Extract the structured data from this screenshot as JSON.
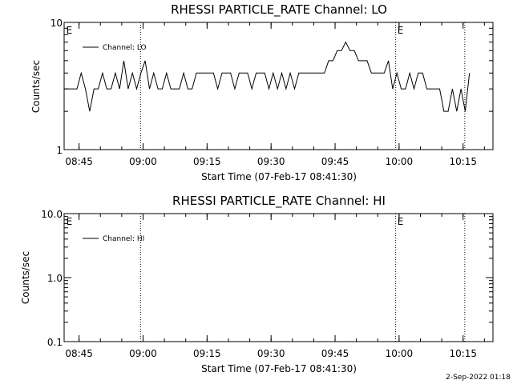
{
  "footer": {
    "date_label": "2-Sep-2022 01:18"
  },
  "chart_data": [
    {
      "type": "line",
      "title": "RHESSI PARTICLE_RATE Channel: LO",
      "xlabel": "Start Time (07-Feb-17 08:41:30)",
      "ylabel": "Counts/sec",
      "yscale": "log",
      "ylim": [
        1,
        10
      ],
      "ytick_labels": [
        "1",
        "10"
      ],
      "xlim": [
        "08:41:30",
        "10:22:00"
      ],
      "xtick_labels": [
        "08:45",
        "09:00",
        "09:15",
        "09:30",
        "09:45",
        "10:00",
        "10:15"
      ],
      "xtick_minutes": [
        3.5,
        18.5,
        33.5,
        48.5,
        63.5,
        78.5,
        93.5
      ],
      "vlines_minutes": [
        17.9,
        77.7,
        93.9
      ],
      "markers": [
        {
          "text": "E",
          "minutes": 0.3
        },
        {
          "text": "E",
          "minutes": 77.9
        }
      ],
      "legend": "top-left",
      "grid": false,
      "series": [
        {
          "name": "Channel: LO",
          "color": "#000000",
          "x": [
            0,
            1,
            2,
            3,
            4,
            5,
            6,
            7,
            8,
            9,
            10,
            11,
            12,
            13,
            14,
            15,
            16,
            17,
            18,
            19,
            20,
            21,
            22,
            23,
            24,
            25,
            26,
            27,
            28,
            29,
            30,
            31,
            32,
            33,
            34,
            35,
            36,
            37,
            38,
            39,
            40,
            41,
            42,
            43,
            44,
            45,
            46,
            47,
            48,
            49,
            50,
            51,
            52,
            53,
            54,
            55,
            56,
            57,
            58,
            59,
            60,
            61,
            62,
            63,
            64,
            65,
            66,
            67,
            68,
            69,
            70,
            71,
            72,
            73,
            74,
            75,
            76,
            77,
            78,
            79,
            80,
            81,
            82,
            83,
            84,
            85,
            86,
            87,
            88,
            89,
            90,
            91,
            92,
            93,
            94,
            95
          ],
          "values": [
            3,
            3,
            3,
            3,
            4,
            3,
            2,
            3,
            3,
            4,
            3,
            3,
            4,
            3,
            5,
            3,
            4,
            3,
            4,
            5,
            3,
            4,
            3,
            3,
            4,
            3,
            3,
            3,
            4,
            3,
            3,
            4,
            4,
            4,
            4,
            4,
            3,
            4,
            4,
            4,
            3,
            4,
            4,
            4,
            3,
            4,
            4,
            4,
            3,
            4,
            3,
            4,
            3,
            4,
            3,
            4,
            4,
            4,
            4,
            4,
            4,
            4,
            5,
            5,
            6,
            6,
            7,
            6,
            6,
            5,
            5,
            5,
            4,
            4,
            4,
            4,
            5,
            3,
            4,
            3,
            3,
            4,
            3,
            4,
            4,
            3,
            3,
            3,
            3,
            2,
            2,
            3,
            2,
            3,
            2,
            4
          ]
        }
      ]
    },
    {
      "type": "line",
      "title": "RHESSI PARTICLE_RATE Channel: HI",
      "xlabel": "Start Time (07-Feb-17 08:41:30)",
      "ylabel": "Counts/sec",
      "yscale": "log",
      "ylim": [
        0.1,
        10.0
      ],
      "ytick_labels": [
        "0.1",
        "1.0",
        "10.0"
      ],
      "xlim": [
        "08:41:30",
        "10:22:00"
      ],
      "xtick_labels": [
        "08:45",
        "09:00",
        "09:15",
        "09:30",
        "09:45",
        "10:00",
        "10:15"
      ],
      "xtick_minutes": [
        3.5,
        18.5,
        33.5,
        48.5,
        63.5,
        78.5,
        93.5
      ],
      "vlines_minutes": [
        17.9,
        77.7,
        93.9
      ],
      "markers": [
        {
          "text": "E",
          "minutes": 0.3
        },
        {
          "text": "E",
          "minutes": 77.9
        }
      ],
      "legend": "top-left",
      "grid": false,
      "series": [
        {
          "name": "Channel: HI",
          "color": "#000000",
          "x": [],
          "values": []
        }
      ]
    }
  ]
}
